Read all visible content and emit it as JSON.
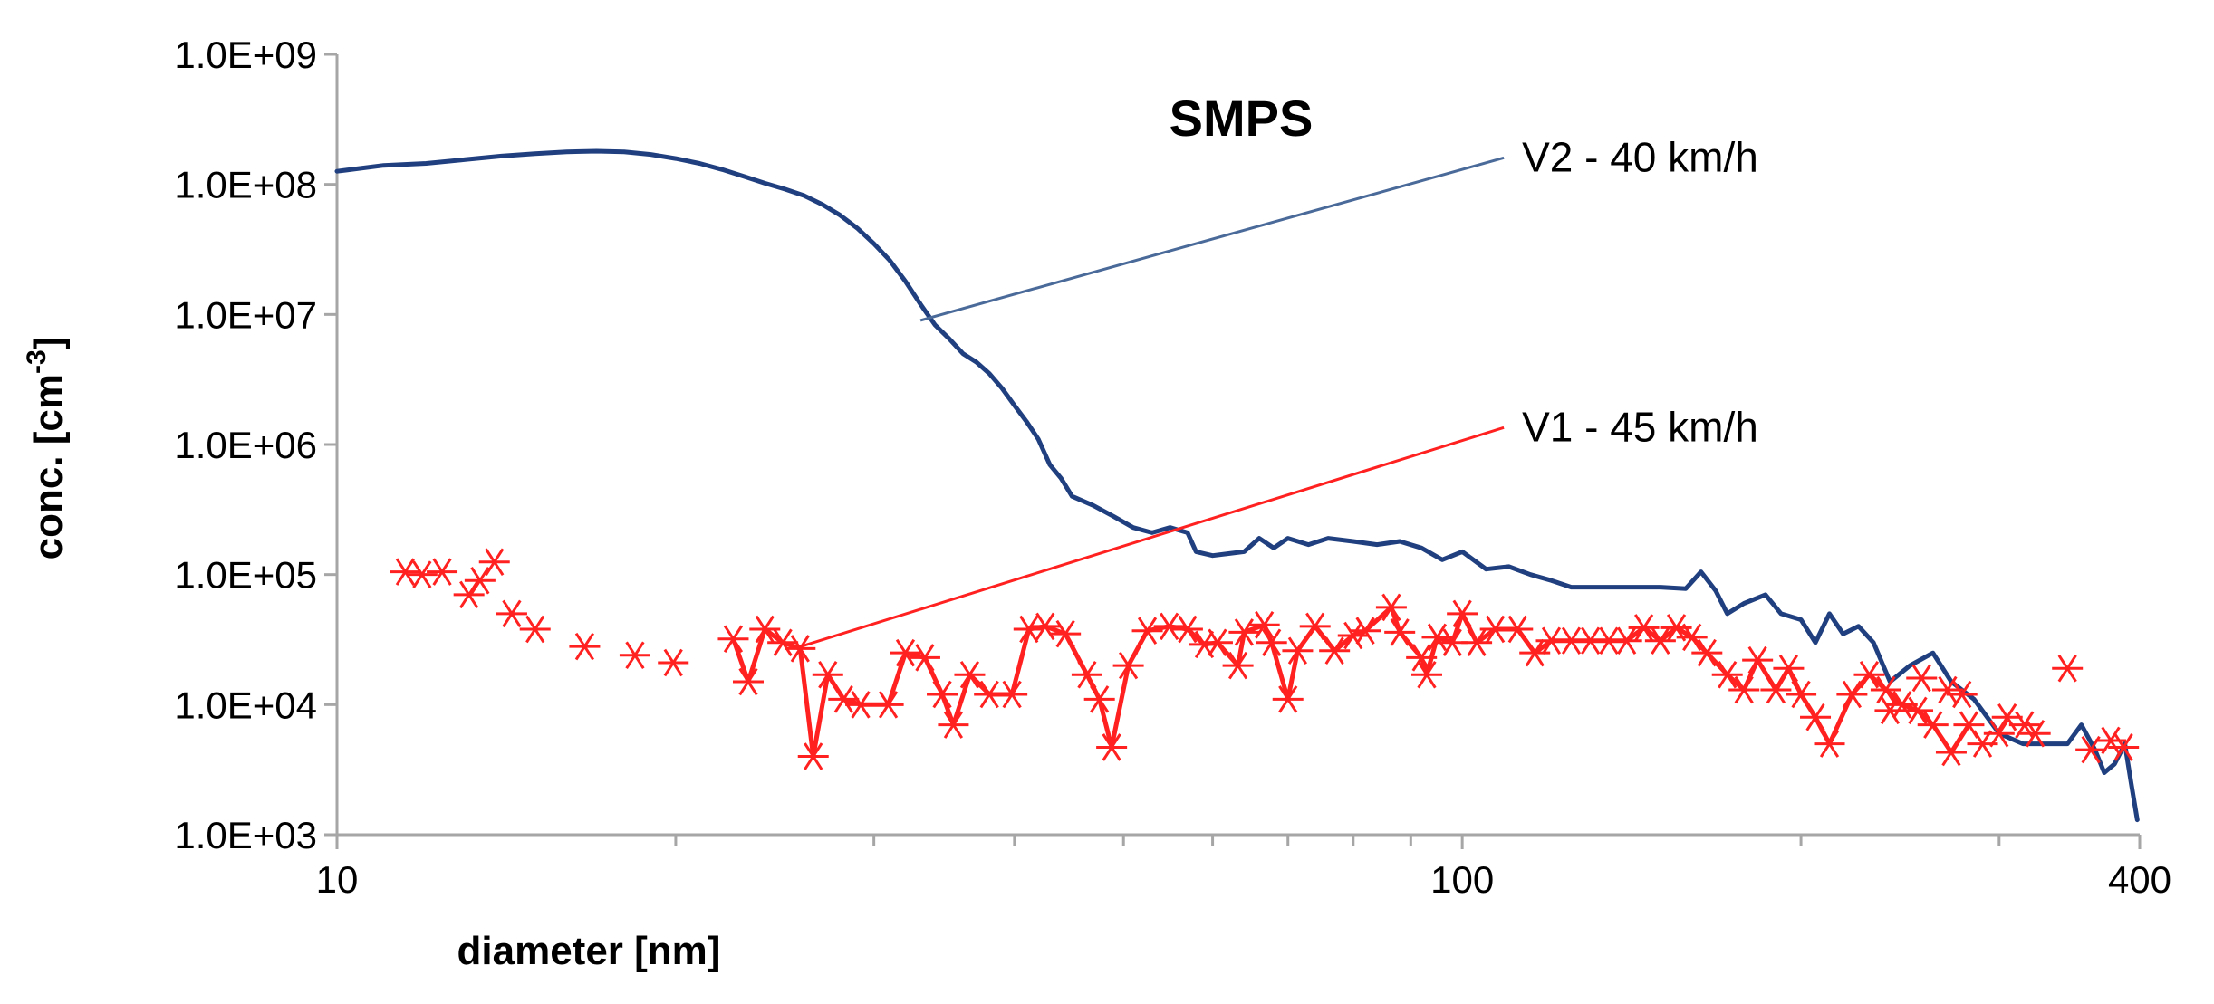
{
  "chart_data": {
    "type": "line",
    "title": "SMPS",
    "xlabel": "diameter [nm]",
    "ylabel": {
      "main": "conc. [cm",
      "sup": "-3",
      "close": "]"
    },
    "xscale": "log",
    "yscale": "log",
    "xlim": [
      10,
      400
    ],
    "ylim": [
      1000,
      1000000000
    ],
    "x_ticks": [
      {
        "value": 10,
        "label": "10"
      },
      {
        "value": 100,
        "label": "100"
      },
      {
        "value": 400,
        "label": "400"
      }
    ],
    "x_minor_ticks": [
      20,
      30,
      40,
      50,
      60,
      70,
      80,
      90,
      200,
      300
    ],
    "y_ticks": [
      {
        "value": 1000,
        "label": "1.0E+03"
      },
      {
        "value": 10000,
        "label": "1.0E+04"
      },
      {
        "value": 100000,
        "label": "1.0E+05"
      },
      {
        "value": 1000000,
        "label": "1.0E+06"
      },
      {
        "value": 10000000,
        "label": "1.0E+07"
      },
      {
        "value": 100000000,
        "label": "1.0E+08"
      },
      {
        "value": 1000000000,
        "label": "1.0E+09"
      }
    ],
    "grid": false,
    "series": [
      {
        "name": "V2 - 40 km/h",
        "color": "#1f3f7f",
        "marker": "none",
        "points": [
          [
            10.0,
            126000000.0
          ],
          [
            11.0,
            140000000.0
          ],
          [
            12.0,
            145000000.0
          ],
          [
            13.0,
            155000000.0
          ],
          [
            14.0,
            165000000.0
          ],
          [
            15.0,
            172000000.0
          ],
          [
            16.0,
            178000000.0
          ],
          [
            17.0,
            180000000.0
          ],
          [
            18.0,
            178000000.0
          ],
          [
            19.0,
            170000000.0
          ],
          [
            20.0,
            158000000.0
          ],
          [
            21.0,
            145000000.0
          ],
          [
            22.0,
            130000000.0
          ],
          [
            23.0,
            115000000.0
          ],
          [
            24.0,
            102000000.0
          ],
          [
            25.0,
            92000000.0
          ],
          [
            26.0,
            82000000.0
          ],
          [
            27.0,
            70000000.0
          ],
          [
            28.0,
            58000000.0
          ],
          [
            29.0,
            46000000.0
          ],
          [
            30.0,
            35000000.0
          ],
          [
            31.0,
            26000000.0
          ],
          [
            32.0,
            18000000.0
          ],
          [
            33.0,
            12000000.0
          ],
          [
            34.0,
            8300000.0
          ],
          [
            35.0,
            6500000.0
          ],
          [
            36.0,
            5000000.0
          ],
          [
            37.0,
            4300000.0
          ],
          [
            38.0,
            3500000.0
          ],
          [
            39.0,
            2700000.0
          ],
          [
            40.0,
            2000000.0
          ],
          [
            41.0,
            1500000.0
          ],
          [
            42.0,
            1100000.0
          ],
          [
            43.0,
            700000.0
          ],
          [
            44.0,
            550000.0
          ],
          [
            45.0,
            400000.0
          ],
          [
            47.0,
            340000.0
          ],
          [
            49.0,
            280000.0
          ],
          [
            51.0,
            230000.0
          ],
          [
            53.0,
            210000.0
          ],
          [
            55.0,
            230000.0
          ],
          [
            57.0,
            210000.0
          ],
          [
            58.0,
            150000.0
          ],
          [
            60.0,
            140000.0
          ],
          [
            62.0,
            145000.0
          ],
          [
            64.0,
            150000.0
          ],
          [
            66.0,
            190000.0
          ],
          [
            68.0,
            160000.0
          ],
          [
            70.0,
            190000.0
          ],
          [
            73.0,
            170000.0
          ],
          [
            76.0,
            190000.0
          ],
          [
            80.0,
            180000.0
          ],
          [
            84.0,
            170000.0
          ],
          [
            88.0,
            180000.0
          ],
          [
            92.0,
            160000.0
          ],
          [
            96.0,
            130000.0
          ],
          [
            100.0,
            150000.0
          ],
          [
            105.0,
            110000.0
          ],
          [
            110.0,
            115000.0
          ],
          [
            115.0,
            100000.0
          ],
          [
            120.0,
            90000.0
          ],
          [
            125.0,
            80000.0
          ],
          [
            130.0,
            80000.0
          ],
          [
            140.0,
            80000.0
          ],
          [
            150.0,
            80000.0
          ],
          [
            158.0,
            78000.0
          ],
          [
            163.0,
            105000.0
          ],
          [
            168.0,
            75000.0
          ],
          [
            172.0,
            50000.0
          ],
          [
            178.0,
            60000.0
          ],
          [
            186.0,
            70000.0
          ],
          [
            192.0,
            50000.0
          ],
          [
            200.0,
            45000.0
          ],
          [
            206.0,
            30000.0
          ],
          [
            212.0,
            50000.0
          ],
          [
            218.0,
            35000.0
          ],
          [
            225.0,
            40000.0
          ],
          [
            232.0,
            30000.0
          ],
          [
            240.0,
            15000.0
          ],
          [
            250.0,
            20000.0
          ],
          [
            262.0,
            25000.0
          ],
          [
            272.0,
            15000.0
          ],
          [
            285.0,
            11000.0
          ],
          [
            300.0,
            6000.0
          ],
          [
            315.0,
            5000.0
          ],
          [
            330.0,
            5000.0
          ],
          [
            345.0,
            5000.0
          ],
          [
            355.0,
            7000.0
          ],
          [
            365.0,
            4500.0
          ],
          [
            372.0,
            3000.0
          ],
          [
            380.0,
            3500.0
          ],
          [
            388.0,
            5000.0
          ],
          [
            393.0,
            2500.0
          ],
          [
            398.0,
            1300.0
          ]
        ]
      },
      {
        "name": "V1 - 45 km/h",
        "color": "#ff2020",
        "marker": "asterisk",
        "scatter_only": [
          [
            11.5,
            105000.0
          ],
          [
            11.9,
            100000.0
          ],
          [
            12.4,
            105000.0
          ],
          [
            13.1,
            70000.0
          ],
          [
            13.4,
            90000.0
          ],
          [
            13.8,
            125000.0
          ],
          [
            14.3,
            50000.0
          ],
          [
            15.0,
            38000.0
          ],
          [
            16.6,
            28000.0
          ],
          [
            18.4,
            24000.0
          ],
          [
            19.9,
            21000.0
          ]
        ],
        "points": [
          [
            22.5,
            32000.0
          ],
          [
            23.2,
            15000.0
          ],
          [
            24.0,
            38000.0
          ],
          [
            24.9,
            30000.0
          ],
          [
            25.8,
            27000.0
          ],
          [
            26.5,
            4000.0
          ],
          [
            27.3,
            17000.0
          ],
          [
            28.2,
            11000.0
          ],
          [
            29.2,
            10000.0
          ],
          [
            30.9,
            10000.0
          ],
          [
            32.0,
            25000.0
          ],
          [
            33.3,
            23000.0
          ],
          [
            34.5,
            12000.0
          ],
          [
            35.3,
            7000.0
          ],
          [
            36.5,
            17000.0
          ],
          [
            38.0,
            12000.0
          ],
          [
            39.8,
            12000.0
          ],
          [
            41.2,
            38000.0
          ],
          [
            42.6,
            40000.0
          ],
          [
            44.4,
            35000.0
          ],
          [
            46.4,
            17000.0
          ],
          [
            47.6,
            11000.0
          ],
          [
            48.8,
            4700.0
          ],
          [
            50.5,
            20000.0
          ],
          [
            52.5,
            37000.0
          ],
          [
            54.9,
            40000.0
          ],
          [
            57.0,
            38000.0
          ],
          [
            59.0,
            29000.0
          ],
          [
            60.6,
            30000.0
          ],
          [
            63.2,
            20000.0
          ],
          [
            64.0,
            36000.0
          ],
          [
            66.7,
            41000.0
          ],
          [
            67.7,
            30000.0
          ],
          [
            70.0,
            11000.0
          ],
          [
            71.4,
            26000.0
          ],
          [
            74.0,
            40000.0
          ],
          [
            77.0,
            26000.0
          ],
          [
            80.0,
            34000.0
          ],
          [
            82.0,
            37000.0
          ],
          [
            86.5,
            56000.0
          ],
          [
            88.0,
            36000.0
          ],
          [
            92.0,
            23000.0
          ],
          [
            93.0,
            17000.0
          ],
          [
            95.0,
            33000.0
          ],
          [
            98.0,
            30000.0
          ],
          [
            100.0,
            50000.0
          ],
          [
            103.0,
            30000.0
          ],
          [
            107.0,
            38000.0
          ],
          [
            112.0,
            38000.0
          ],
          [
            116.0,
            25000.0
          ],
          [
            120.0,
            31000.0
          ],
          [
            125.0,
            31000.0
          ],
          [
            130.0,
            31000.0
          ],
          [
            135.0,
            31000.0
          ],
          [
            140.0,
            31000.0
          ],
          [
            145.0,
            39000.0
          ],
          [
            150.0,
            31000.0
          ],
          [
            155.0,
            39000.0
          ],
          [
            160.0,
            33000.0
          ],
          [
            165.0,
            25000.0
          ],
          [
            172.0,
            17000.0
          ],
          [
            178.0,
            13000.0
          ],
          [
            183.0,
            22000.0
          ],
          [
            190.0,
            13000.0
          ],
          [
            195.0,
            19000.0
          ],
          [
            200.0,
            12000.0
          ],
          [
            206.0,
            8000.0
          ],
          [
            212.0,
            5000.0
          ],
          [
            222.0,
            12000.0
          ],
          [
            230.0,
            17000.0
          ],
          [
            238.0,
            13000.0
          ],
          [
            246.0,
            10000.0
          ],
          [
            254.0,
            9000.0
          ],
          [
            262.0,
            7000.0
          ],
          [
            272.0,
            4300.0
          ],
          [
            282.0,
            7000.0
          ]
        ],
        "scatter_tail": [
          [
            240.0,
            9000.0
          ],
          [
            256.0,
            16000.0
          ],
          [
            270.0,
            13000.0
          ],
          [
            278.0,
            12000.0
          ],
          [
            290.0,
            5000.0
          ],
          [
            300.0,
            6000.0
          ],
          [
            305.0,
            8000.0
          ],
          [
            316.0,
            7000.0
          ],
          [
            323.0,
            6000.0
          ],
          [
            345.0,
            19000.0
          ],
          [
            362.0,
            4500.0
          ],
          [
            377.0,
            5300.0
          ],
          [
            387.0,
            4700.0
          ]
        ]
      }
    ],
    "annotations": [
      {
        "text": "V2 - 40 km/h",
        "target": [
          33.0,
          9000000.0
        ],
        "label_at": [
          113.0,
          160000000.0
        ],
        "color": "#4a6a9a",
        "text_anchor": "left-of-label"
      },
      {
        "text": "V1 - 45 km/h",
        "target": [
          25.5,
          27000.0
        ],
        "label_at": [
          113.0,
          1350000.0
        ],
        "color": "#ff2020",
        "text_anchor": "left-of-label"
      }
    ]
  }
}
